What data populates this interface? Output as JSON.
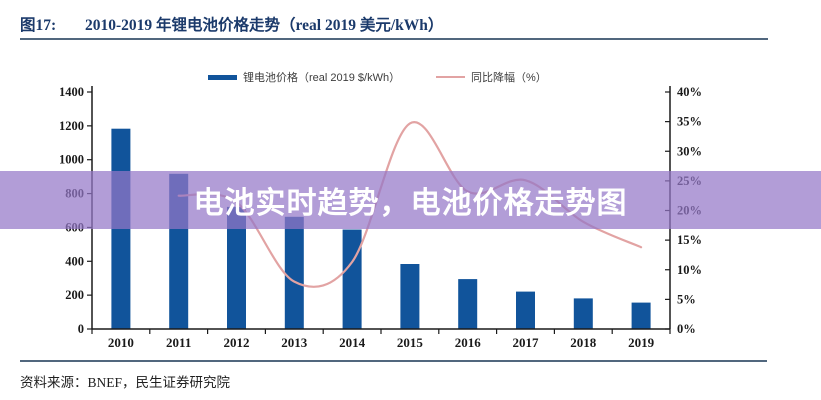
{
  "header": {
    "figure_label": "图17:",
    "title": "2010-2019 年锂电池价格走势（real 2019 美元/kWh）"
  },
  "legend": {
    "items": [
      {
        "label": "锂电池价格（real 2019 $/kWh）",
        "type": "bar",
        "color": "#11549B"
      },
      {
        "label": "同比降幅（%）",
        "type": "line",
        "color": "#E2A3A3"
      }
    ]
  },
  "overlay": {
    "text": "电池实时趋势，电池价格走势图",
    "background_color": "#9477C7",
    "text_color": "#FFFFFF"
  },
  "footer": {
    "source": "资料来源：BNEF，民生证券研究院"
  },
  "chart_data": {
    "type": "bar",
    "subtype": "combo-bar-line-dual-axis",
    "title": "2010-2019 年锂电池价格走势（real 2019 美元/kWh）",
    "categories": [
      "2010",
      "2011",
      "2012",
      "2013",
      "2014",
      "2015",
      "2016",
      "2017",
      "2018",
      "2019"
    ],
    "series": [
      {
        "name": "锂电池价格（real 2019 $/kWh）",
        "type": "bar",
        "axis": "left",
        "color": "#11549B",
        "values": [
          1183,
          917,
          721,
          663,
          588,
          384,
          295,
          221,
          181,
          156
        ]
      },
      {
        "name": "同比降幅（%）",
        "type": "line",
        "axis": "right",
        "color": "#E2A3A3",
        "smooth": true,
        "values": [
          null,
          22.5,
          21.4,
          8.0,
          11.3,
          34.7,
          23.2,
          25.1,
          18.1,
          13.8
        ]
      }
    ],
    "left_axis": {
      "min": 0,
      "max": 1400,
      "step": 200,
      "tick_labels": [
        "0",
        "200",
        "400",
        "600",
        "800",
        "1000",
        "1200",
        "1400"
      ]
    },
    "right_axis": {
      "min": 0,
      "max": 40,
      "step": 5,
      "tick_labels": [
        "0%",
        "5%",
        "10%",
        "15%",
        "20%",
        "25%",
        "30%",
        "35%",
        "40%"
      ]
    },
    "grid": false,
    "legend_position": "top",
    "axis_color": "#1a1a1a"
  }
}
